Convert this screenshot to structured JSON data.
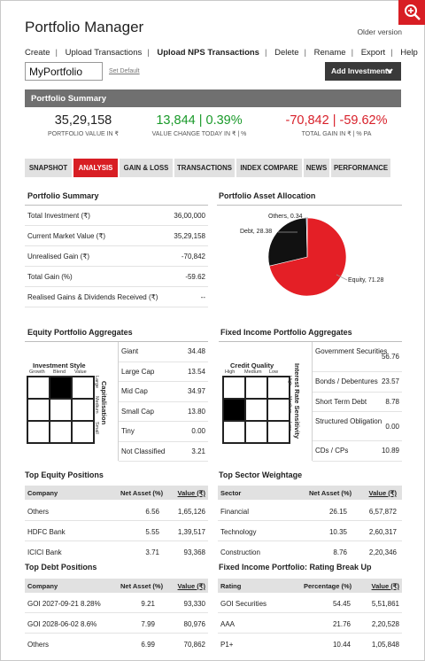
{
  "header": {
    "title": "Portfolio Manager",
    "older_version": "Older version"
  },
  "menu": {
    "items": [
      "Create",
      "Upload Transactions",
      "Upload NPS Transactions",
      "Delete",
      "Rename",
      "Export",
      "Help"
    ]
  },
  "portfolio": {
    "name": "MyPortfolio",
    "set_default": "Set Default",
    "add_investments": "Add Investments"
  },
  "summary_bar": {
    "title": "Portfolio Summary"
  },
  "stats": {
    "value": "35,29,158",
    "value_label": "PORTFOLIO VALUE IN ₹",
    "change": "13,844 | 0.39%",
    "change_label": "VALUE CHANGE TODAY IN ₹ | %",
    "gain": "-70,842 | -59.62%",
    "gain_label": "TOTAL GAIN IN ₹ | % PA"
  },
  "tabs": [
    "SNAPSHOT",
    "ANALYSIS",
    "GAIN & LOSS",
    "TRANSACTIONS",
    "INDEX COMPARE",
    "NEWS",
    "PERFORMANCE"
  ],
  "portfolio_summary": {
    "title": "Portfolio Summary",
    "rows": [
      {
        "label": "Total Investment (₹)",
        "value": "36,00,000"
      },
      {
        "label": "Current Market Value (₹)",
        "value": "35,29,158"
      },
      {
        "label": "Unrealised Gain (₹)",
        "value": "-70,842"
      },
      {
        "label": "Total Gain (%)",
        "value": "-59.62"
      },
      {
        "label": "Realised Gains & Dividends Received (₹)",
        "value": "--"
      }
    ]
  },
  "allocation": {
    "title": "Portfolio Asset Allocation",
    "labels": {
      "others": "Others, 0.34",
      "debt": "Debt, 28.38",
      "equity": "Equity, 71.28"
    },
    "chart_data": {
      "type": "pie",
      "categories": [
        "Equity",
        "Debt",
        "Others"
      ],
      "values": [
        71.28,
        28.38,
        0.34
      ],
      "colors": [
        "#e41f26",
        "#111111",
        "#2a6bbf"
      ]
    }
  },
  "equity_agg": {
    "title": "Equity Portfolio Aggregates",
    "style_title": "Investment Style",
    "style_cols": [
      "Growth",
      "Blend",
      "Value"
    ],
    "cap_title": "Capitalisation",
    "cap_rows": [
      "Large",
      "Medium",
      "Small"
    ],
    "rows": [
      {
        "label": "Giant",
        "value": "34.48"
      },
      {
        "label": "Large Cap",
        "value": "13.54"
      },
      {
        "label": "Mid Cap",
        "value": "34.97"
      },
      {
        "label": "Small Cap",
        "value": "13.80"
      },
      {
        "label": "Tiny",
        "value": "0.00"
      },
      {
        "label": "Not Classified",
        "value": "3.21"
      }
    ]
  },
  "fixed_agg": {
    "title": "Fixed Income Portfolio Aggregates",
    "quality_title": "Credit Quality",
    "quality_cols": [
      "High",
      "Medium",
      "Low"
    ],
    "rate_title": "Interest Rate Sensitivity",
    "rate_rows": [
      "High",
      "Medium",
      "Low"
    ],
    "rows": [
      {
        "label": "Government Securities",
        "value": "56.76"
      },
      {
        "label": "Bonds / Debentures",
        "value": "23.57"
      },
      {
        "label": "Short Term Debt",
        "value": "8.78"
      },
      {
        "label": "Structured Obligation",
        "value": "0.00"
      },
      {
        "label": "CDs / CPs",
        "value": "10.89"
      }
    ]
  },
  "top_equity": {
    "title": "Top Equity Positions",
    "headers": [
      "Company",
      "Net Asset (%)",
      "Value (₹)"
    ],
    "rows": [
      [
        "Others",
        "6.56",
        "1,65,126"
      ],
      [
        "HDFC Bank",
        "5.55",
        "1,39,517"
      ],
      [
        "ICICI Bank",
        "3.71",
        "93,368"
      ]
    ]
  },
  "top_sector": {
    "title": "Top Sector Weightage",
    "headers": [
      "Sector",
      "Net Asset (%)",
      "Value (₹)"
    ],
    "rows": [
      [
        "Financial",
        "26.15",
        "6,57,872"
      ],
      [
        "Technology",
        "10.35",
        "2,60,317"
      ],
      [
        "Construction",
        "8.76",
        "2,20,346"
      ]
    ]
  },
  "top_debt": {
    "title": "Top Debt Positions",
    "headers": [
      "Company",
      "Net Asset (%)",
      "Value (₹)"
    ],
    "rows": [
      [
        "GOI 2027-09-21 8.28%",
        "9.21",
        "93,330"
      ],
      [
        "GOI 2028-06-02 8.6%",
        "7.99",
        "80,976"
      ],
      [
        "Others",
        "6.99",
        "70,862"
      ]
    ]
  },
  "rating_breakup": {
    "title": "Fixed Income Portfolio: Rating Break Up",
    "headers": [
      "Rating",
      "Percentage (%)",
      "Value (₹)"
    ],
    "rows": [
      [
        "GOI Securities",
        "54.45",
        "5,51,861"
      ],
      [
        "AAA",
        "21.76",
        "2,20,528"
      ],
      [
        "P1+",
        "10.44",
        "1,05,848"
      ]
    ]
  }
}
